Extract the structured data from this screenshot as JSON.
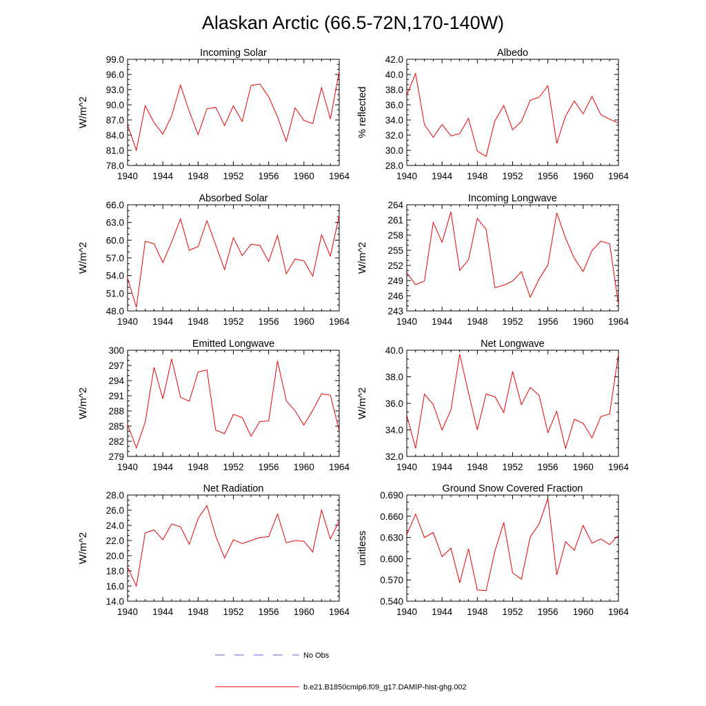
{
  "title": "Alaskan Arctic (66.5-72N,170-140W)",
  "x_ticks": [
    "1940",
    "1944",
    "1948",
    "1952",
    "1956",
    "1960",
    "1964"
  ],
  "legend": [
    {
      "label": "No Obs",
      "color": "#5a5ad2",
      "dash": "dashed"
    },
    {
      "label": "b.e21.B1850cmip6.f09_g17.DAMIP-hist-ghg.002",
      "color": "#e60000",
      "dash": "solid"
    }
  ],
  "chart_data": [
    {
      "type": "line",
      "title": "Incoming Solar",
      "ylabel": "W/m^2",
      "xlim": [
        1940,
        1964
      ],
      "ylim": [
        78,
        99
      ],
      "yticks": [
        "78.0",
        "81.0",
        "84.0",
        "87.0",
        "90.0",
        "93.0",
        "96.0",
        "99.0"
      ],
      "x": [
        1940,
        1941,
        1942,
        1943,
        1944,
        1945,
        1946,
        1947,
        1948,
        1949,
        1950,
        1951,
        1952,
        1953,
        1954,
        1955,
        1956,
        1957,
        1958,
        1959,
        1960,
        1961,
        1962,
        1963,
        1964
      ],
      "series": [
        {
          "name": "b.e21.B1850cmip6.f09_g17.DAMIP-hist-ghg.002",
          "color": "#e60000",
          "values": [
            86.0,
            81.0,
            89.8,
            86.5,
            84.2,
            87.8,
            93.9,
            88.7,
            84.1,
            89.2,
            89.5,
            85.9,
            89.8,
            86.7,
            93.8,
            94.1,
            91.6,
            87.6,
            82.8,
            89.4,
            86.9,
            86.3,
            93.4,
            87.2,
            96.6
          ]
        }
      ]
    },
    {
      "type": "line",
      "title": "Albedo",
      "ylabel": "% reflected",
      "xlim": [
        1940,
        1964
      ],
      "ylim": [
        28,
        42
      ],
      "yticks": [
        "28.0",
        "30.0",
        "32.0",
        "34.0",
        "36.0",
        "38.0",
        "40.0",
        "42.0"
      ],
      "x": [
        1940,
        1941,
        1942,
        1943,
        1944,
        1945,
        1946,
        1947,
        1948,
        1949,
        1950,
        1951,
        1952,
        1953,
        1954,
        1955,
        1956,
        1957,
        1958,
        1959,
        1960,
        1961,
        1962,
        1963,
        1964
      ],
      "series": [
        {
          "name": "b.e21.B1850cmip6.f09_g17.DAMIP-hist-ghg.002",
          "color": "#e60000",
          "values": [
            37.3,
            40.1,
            33.4,
            31.7,
            33.4,
            31.9,
            32.2,
            34.2,
            29.9,
            29.2,
            33.9,
            35.9,
            32.7,
            33.8,
            36.6,
            37.0,
            38.5,
            30.9,
            34.5,
            36.5,
            34.8,
            37.1,
            34.7,
            34.1,
            33.6
          ]
        }
      ]
    },
    {
      "type": "line",
      "title": "Absorbed Solar",
      "ylabel": "W/m^2",
      "xlim": [
        1940,
        1964
      ],
      "ylim": [
        48,
        66
      ],
      "yticks": [
        "48.0",
        "51.0",
        "54.0",
        "57.0",
        "60.0",
        "63.0",
        "66.0"
      ],
      "x": [
        1940,
        1941,
        1942,
        1943,
        1944,
        1945,
        1946,
        1947,
        1948,
        1949,
        1950,
        1951,
        1952,
        1953,
        1954,
        1955,
        1956,
        1957,
        1958,
        1959,
        1960,
        1961,
        1962,
        1963,
        1964
      ],
      "series": [
        {
          "name": "b.e21.B1850cmip6.f09_g17.DAMIP-hist-ghg.002",
          "color": "#e60000",
          "values": [
            53.6,
            48.6,
            59.8,
            59.4,
            56.2,
            59.7,
            63.6,
            58.3,
            58.9,
            63.3,
            59.2,
            55.0,
            60.4,
            57.4,
            59.3,
            59.1,
            56.4,
            60.8,
            54.3,
            56.8,
            56.5,
            53.9,
            60.9,
            57.3,
            64.2
          ]
        }
      ]
    },
    {
      "type": "line",
      "title": "Incoming Longwave",
      "ylabel": "W/m^2",
      "xlim": [
        1940,
        1964
      ],
      "ylim": [
        243,
        264
      ],
      "yticks": [
        "243",
        "246",
        "249",
        "252",
        "255",
        "258",
        "261",
        "264"
      ],
      "x": [
        1940,
        1941,
        1942,
        1943,
        1944,
        1945,
        1946,
        1947,
        1948,
        1949,
        1950,
        1951,
        1952,
        1953,
        1954,
        1955,
        1956,
        1957,
        1958,
        1959,
        1960,
        1961,
        1962,
        1963,
        1964
      ],
      "series": [
        {
          "name": "b.e21.B1850cmip6.f09_g17.DAMIP-hist-ghg.002",
          "color": "#e60000",
          "values": [
            250.6,
            248.2,
            248.9,
            260.5,
            256.6,
            262.6,
            251.0,
            253.1,
            261.3,
            259.1,
            247.6,
            248.1,
            248.9,
            250.8,
            245.7,
            249.3,
            252.1,
            262.4,
            257.4,
            253.4,
            250.8,
            254.9,
            256.8,
            256.3,
            244.3
          ]
        }
      ]
    },
    {
      "type": "line",
      "title": "Emitted Longwave",
      "ylabel": "W/m^2",
      "xlim": [
        1940,
        1964
      ],
      "ylim": [
        279,
        300
      ],
      "yticks": [
        "279",
        "282",
        "285",
        "288",
        "291",
        "294",
        "297",
        "300"
      ],
      "x": [
        1940,
        1941,
        1942,
        1943,
        1944,
        1945,
        1946,
        1947,
        1948,
        1949,
        1950,
        1951,
        1952,
        1953,
        1954,
        1955,
        1956,
        1957,
        1958,
        1959,
        1960,
        1961,
        1962,
        1963,
        1964
      ],
      "series": [
        {
          "name": "b.e21.B1850cmip6.f09_g17.DAMIP-hist-ghg.002",
          "color": "#e60000",
          "values": [
            285.3,
            280.7,
            285.8,
            296.6,
            290.4,
            298.3,
            290.7,
            289.9,
            295.7,
            296.1,
            284.2,
            283.5,
            287.3,
            286.7,
            283.0,
            285.9,
            286.0,
            297.9,
            290.0,
            288.0,
            285.2,
            288.1,
            291.4,
            291.1,
            284.1
          ]
        }
      ]
    },
    {
      "type": "line",
      "title": "Net Longwave",
      "ylabel": "W/m^2",
      "xlim": [
        1940,
        1964
      ],
      "ylim": [
        32,
        40
      ],
      "yticks": [
        "32.0",
        "34.0",
        "36.0",
        "38.0",
        "40.0"
      ],
      "x": [
        1940,
        1941,
        1942,
        1943,
        1944,
        1945,
        1946,
        1947,
        1948,
        1949,
        1950,
        1951,
        1952,
        1953,
        1954,
        1955,
        1956,
        1957,
        1958,
        1959,
        1960,
        1961,
        1962,
        1963,
        1964
      ],
      "series": [
        {
          "name": "b.e21.B1850cmip6.f09_g17.DAMIP-hist-ghg.002",
          "color": "#e60000",
          "values": [
            35.1,
            32.6,
            36.7,
            35.9,
            34.0,
            35.5,
            39.7,
            36.8,
            34.0,
            36.7,
            36.5,
            35.3,
            38.4,
            35.9,
            37.2,
            36.6,
            33.8,
            35.4,
            32.6,
            34.8,
            34.5,
            33.4,
            35.0,
            35.2,
            39.7
          ]
        }
      ]
    },
    {
      "type": "line",
      "title": "Net Radiation",
      "ylabel": "W/m^2",
      "xlim": [
        1940,
        1964
      ],
      "ylim": [
        14,
        28
      ],
      "yticks": [
        "14.0",
        "16.0",
        "18.0",
        "20.0",
        "22.0",
        "24.0",
        "26.0",
        "28.0"
      ],
      "x": [
        1940,
        1941,
        1942,
        1943,
        1944,
        1945,
        1946,
        1947,
        1948,
        1949,
        1950,
        1951,
        1952,
        1953,
        1954,
        1955,
        1956,
        1957,
        1958,
        1959,
        1960,
        1961,
        1962,
        1963,
        1964
      ],
      "series": [
        {
          "name": "b.e21.B1850cmip6.f09_g17.DAMIP-hist-ghg.002",
          "color": "#e60000",
          "values": [
            18.5,
            16.0,
            23.0,
            23.4,
            22.1,
            24.2,
            23.8,
            21.5,
            24.9,
            26.6,
            22.6,
            19.7,
            22.1,
            21.6,
            22.0,
            22.4,
            22.5,
            25.5,
            21.7,
            22.0,
            21.9,
            20.5,
            26.0,
            22.2,
            24.6
          ]
        }
      ]
    },
    {
      "type": "line",
      "title": "Ground Snow Covered Fraction",
      "ylabel": "unitless",
      "xlim": [
        1940,
        1964
      ],
      "ylim": [
        0.54,
        0.69
      ],
      "yticks": [
        "0.540",
        "0.570",
        "0.600",
        "0.630",
        "0.660",
        "0.690"
      ],
      "x": [
        1940,
        1941,
        1942,
        1943,
        1944,
        1945,
        1946,
        1947,
        1948,
        1949,
        1950,
        1951,
        1952,
        1953,
        1954,
        1955,
        1956,
        1957,
        1958,
        1959,
        1960,
        1961,
        1962,
        1963,
        1964
      ],
      "series": [
        {
          "name": "b.e21.B1850cmip6.f09_g17.DAMIP-hist-ghg.002",
          "color": "#e60000",
          "values": [
            0.634,
            0.663,
            0.63,
            0.637,
            0.603,
            0.615,
            0.566,
            0.614,
            0.556,
            0.555,
            0.611,
            0.651,
            0.58,
            0.571,
            0.631,
            0.649,
            0.685,
            0.577,
            0.624,
            0.612,
            0.647,
            0.622,
            0.628,
            0.62,
            0.633
          ]
        }
      ]
    }
  ]
}
